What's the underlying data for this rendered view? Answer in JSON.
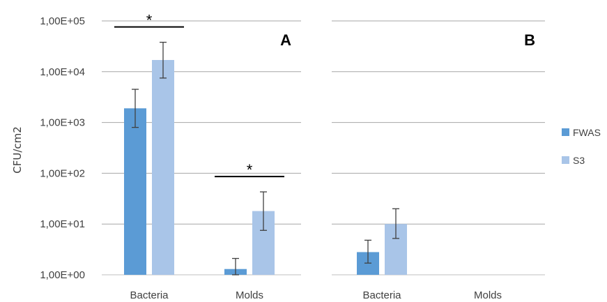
{
  "chart_data": {
    "type": "bar",
    "yscale": "log",
    "ylabel": "CFU/cm2",
    "ylim": [
      1,
      100000
    ],
    "yticks": [
      "1,00E+00",
      "1,00E+01",
      "1,00E+02",
      "1,00E+03",
      "1,00E+04",
      "1,00E+05"
    ],
    "legend": {
      "position": "right",
      "entries": [
        "FWAS",
        "S3"
      ]
    },
    "colors": {
      "FWAS": "#5b9bd5",
      "S3": "#a9c5e8",
      "grid": "#a6a6a6",
      "errorbar": "#404040"
    },
    "grid": true,
    "panels": [
      {
        "label": "A",
        "categories": [
          "Bacteria",
          "Molds"
        ],
        "series": [
          {
            "name": "FWAS",
            "values": [
              1900,
              1.3
            ],
            "err_low": [
              800,
              1.0
            ],
            "err_high": [
              4500,
              2.1
            ]
          },
          {
            "name": "S3",
            "values": [
              17000,
              18
            ],
            "err_low": [
              7500,
              7.5
            ],
            "err_high": [
              38000,
              43
            ]
          }
        ],
        "significance": [
          {
            "category": "Bacteria",
            "marker": "*"
          },
          {
            "category": "Molds",
            "marker": "*"
          }
        ]
      },
      {
        "label": "B",
        "categories": [
          "Bacteria",
          "Molds"
        ],
        "series": [
          {
            "name": "FWAS",
            "values": [
              2.8,
              null
            ],
            "err_low": [
              1.7,
              null
            ],
            "err_high": [
              4.8,
              null
            ]
          },
          {
            "name": "S3",
            "values": [
              10,
              null
            ],
            "err_low": [
              5.2,
              null
            ],
            "err_high": [
              20,
              null
            ]
          }
        ],
        "significance": []
      }
    ]
  }
}
